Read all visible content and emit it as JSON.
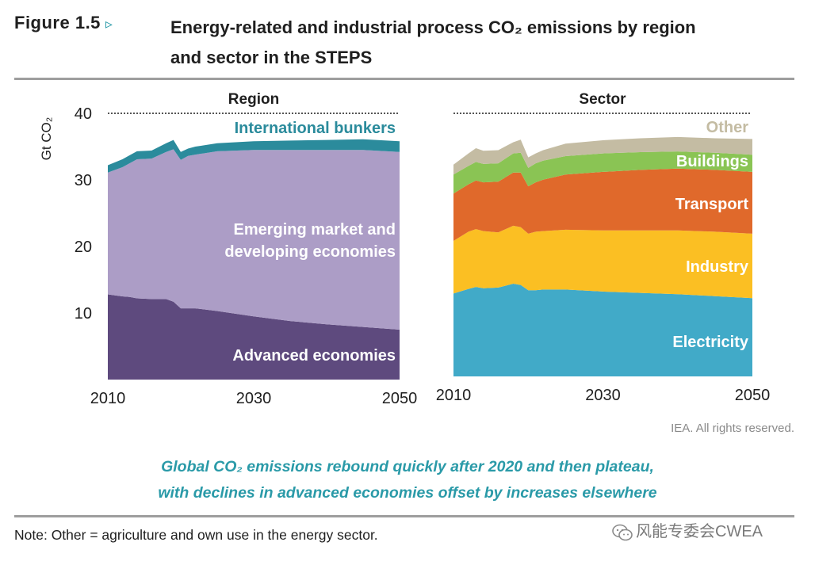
{
  "header": {
    "figure_label": "Figure 1.5",
    "arrow": "▹",
    "title_line1": "Energy-related and industrial process CO₂ emissions by region",
    "title_line2": "and sector in the STEPS"
  },
  "credit": "IEA. All rights reserved.",
  "caption": {
    "line1": "Global CO₂ emissions rebound quickly after 2020 and then plateau,",
    "line2": "with declines in advanced economies offset by increases elsewhere"
  },
  "note": "Note: Other = agriculture and own use in the energy sector.",
  "watermark": {
    "text": "风能专委会CWEA",
    "icon": "wechat-icon"
  },
  "colors": {
    "advanced": "#5e4a7e",
    "emerging": "#ac9dc6",
    "bunkers": "#2b8b9c",
    "electricity": "#41aac8",
    "industry": "#fbbf23",
    "transport": "#e0692b",
    "buildings": "#8ac454",
    "other": "#c4bca3",
    "accent": "#2a9aa8"
  },
  "chart_data": [
    {
      "type": "area",
      "stacked": true,
      "title": "Region",
      "ylabel": "Gt CO₂",
      "xlabel": "",
      "ylim": [
        0,
        40
      ],
      "xlim": [
        2010,
        2050
      ],
      "y_ticks": [
        "10",
        "20",
        "30",
        "40"
      ],
      "x_ticks": [
        "2010",
        "2030",
        "2050"
      ],
      "x": [
        2010,
        2012,
        2013,
        2014,
        2016,
        2018,
        2019,
        2020,
        2021,
        2022,
        2025,
        2030,
        2035,
        2040,
        2045,
        2050
      ],
      "series": [
        {
          "name": "Advanced economies",
          "color_key": "advanced",
          "values": [
            12.8,
            12.5,
            12.4,
            12.2,
            12.1,
            12.1,
            11.7,
            10.7,
            10.7,
            10.7,
            10.3,
            9.5,
            8.8,
            8.3,
            7.9,
            7.5
          ]
        },
        {
          "name": "Emerging market and developing economies",
          "color_key": "emerging",
          "values": [
            18.3,
            19.4,
            20.1,
            20.9,
            21.1,
            22.1,
            22.9,
            22.3,
            22.9,
            23.1,
            24.0,
            25.0,
            25.7,
            26.2,
            26.6,
            26.7
          ]
        },
        {
          "name": "International bunkers",
          "color_key": "bunkers",
          "values": [
            1.1,
            1.2,
            1.2,
            1.2,
            1.2,
            1.3,
            1.4,
            1.2,
            1.1,
            1.2,
            1.2,
            1.3,
            1.4,
            1.5,
            1.6,
            1.6
          ]
        }
      ]
    },
    {
      "type": "area",
      "stacked": true,
      "title": "Sector",
      "ylabel": "",
      "xlabel": "",
      "ylim": [
        0,
        40
      ],
      "xlim": [
        2010,
        2050
      ],
      "y_ticks": [],
      "x_ticks": [
        "2010",
        "2030",
        "2050"
      ],
      "x": [
        2010,
        2012,
        2013,
        2014,
        2016,
        2018,
        2019,
        2020,
        2021,
        2022,
        2025,
        2030,
        2035,
        2040,
        2045,
        2050
      ],
      "series": [
        {
          "name": "Electricity",
          "color_key": "electricity",
          "values": [
            12.6,
            13.3,
            13.6,
            13.4,
            13.5,
            14.1,
            13.9,
            13.1,
            13.1,
            13.2,
            13.2,
            12.9,
            12.7,
            12.5,
            12.2,
            11.9
          ]
        },
        {
          "name": "Industry",
          "color_key": "industry",
          "values": [
            8.0,
            8.7,
            8.8,
            8.7,
            8.4,
            8.8,
            8.8,
            8.6,
            8.9,
            8.9,
            9.1,
            9.3,
            9.5,
            9.7,
            9.8,
            9.8
          ]
        },
        {
          "name": "Transport",
          "color_key": "transport",
          "values": [
            7.2,
            7.2,
            7.4,
            7.4,
            7.7,
            8.1,
            8.3,
            7.2,
            7.5,
            7.8,
            8.4,
            8.9,
            9.2,
            9.4,
            9.4,
            9.4
          ]
        },
        {
          "name": "Buildings",
          "color_key": "buildings",
          "values": [
            2.9,
            2.8,
            2.8,
            2.8,
            2.8,
            2.9,
            3.0,
            2.8,
            2.9,
            2.9,
            2.8,
            2.8,
            2.7,
            2.6,
            2.6,
            2.6
          ]
        },
        {
          "name": "Other",
          "color_key": "other",
          "values": [
            1.5,
            1.9,
            2.1,
            2.0,
            2.0,
            1.7,
            2.0,
            1.6,
            1.5,
            1.6,
            1.9,
            2.0,
            2.1,
            2.2,
            2.2,
            2.4
          ]
        }
      ]
    }
  ]
}
